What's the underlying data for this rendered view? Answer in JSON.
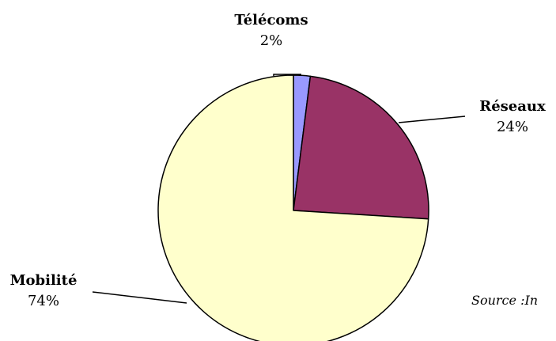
{
  "chart_data": {
    "type": "pie",
    "slices": [
      {
        "label": "Télécoms",
        "value": 2,
        "display": "2%",
        "color": "#9999ff"
      },
      {
        "label": "Réseaux",
        "value": 24,
        "display": "24%",
        "color": "#993366"
      },
      {
        "label": "Mobilité",
        "value": 74,
        "display": "74%",
        "color": "#ffffcc"
      }
    ],
    "start_angle": "12 o'clock",
    "direction": "clockwise",
    "source_note": "Source :In"
  }
}
